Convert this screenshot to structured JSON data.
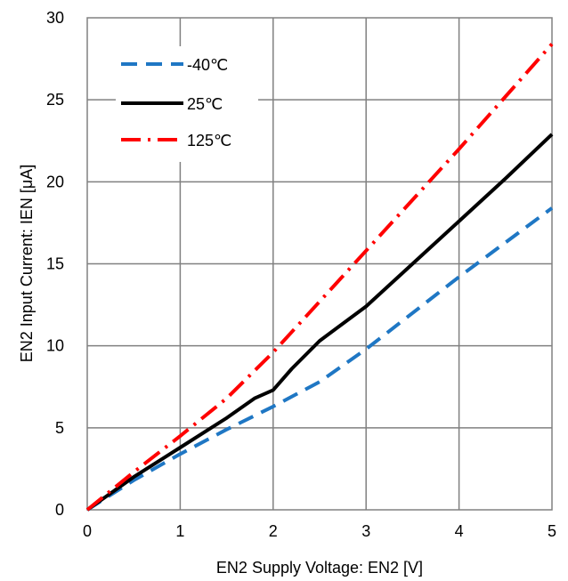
{
  "chart_data": {
    "type": "line",
    "title": "",
    "xlabel": "EN2 Supply Voltage: EN2 [V]",
    "ylabel": "EN2 Input Current: IEN [μA]",
    "xlim": [
      0,
      5
    ],
    "ylim": [
      0,
      30
    ],
    "xticks": [
      "0",
      "1",
      "2",
      "3",
      "4",
      "5"
    ],
    "yticks": [
      "0",
      "5",
      "10",
      "15",
      "20",
      "25",
      "30"
    ],
    "grid": true,
    "legend_position": "top-left",
    "series": [
      {
        "name": "-40℃",
        "color": "#1f77c4",
        "dash": "dashed",
        "x": [
          0,
          0.5,
          1.0,
          1.5,
          2.0,
          2.5,
          3.0,
          3.5,
          4.0,
          4.5,
          5.0
        ],
        "y": [
          0,
          1.8,
          3.4,
          4.9,
          6.3,
          7.8,
          9.8,
          12.0,
          14.2,
          16.3,
          18.4
        ]
      },
      {
        "name": "25℃",
        "color": "#000000",
        "dash": "solid",
        "x": [
          0,
          0.5,
          1.0,
          1.5,
          1.8,
          2.0,
          2.2,
          2.5,
          3.0,
          3.5,
          4.0,
          4.5,
          5.0
        ],
        "y": [
          0,
          2.0,
          3.8,
          5.6,
          6.8,
          7.3,
          8.6,
          10.3,
          12.4,
          15.0,
          17.6,
          20.2,
          22.9
        ]
      },
      {
        "name": "125℃",
        "color": "#ff0000",
        "dash": "dashdot",
        "x": [
          0,
          0.5,
          1.0,
          1.5,
          2.0,
          2.5,
          3.0,
          3.5,
          4.0,
          4.5,
          5.0
        ],
        "y": [
          0,
          2.3,
          4.5,
          6.8,
          9.6,
          12.7,
          15.8,
          18.9,
          22.0,
          25.2,
          28.4
        ]
      }
    ]
  }
}
